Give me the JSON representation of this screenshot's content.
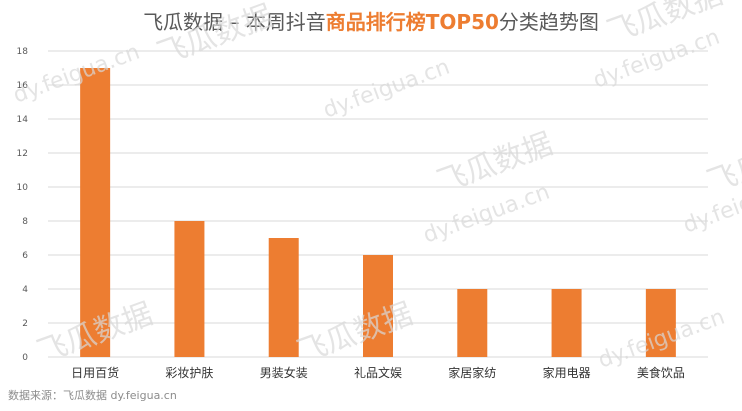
{
  "title": {
    "prefix": "飞瓜数据 – 本周抖音",
    "highlight": "商品排行榜TOP50",
    "suffix": "分类趋势图"
  },
  "source": "数据来源：飞瓜数据  dy.feigua.cn",
  "watermarks": [
    "飞瓜数据",
    "dy.feigua.cn"
  ],
  "colors": {
    "bar": "#ED7D31",
    "grid": "#d9d9d9",
    "axis_text": "#595959",
    "title_highlight": "#ED7D31"
  },
  "chart_data": {
    "type": "bar",
    "title": "飞瓜数据 – 本周抖音商品排行榜TOP50分类趋势图",
    "categories": [
      "日用百货",
      "彩妆护肤",
      "男装女装",
      "礼品文娱",
      "家居家纺",
      "家用电器",
      "美食饮品"
    ],
    "values": [
      17,
      8,
      7,
      6,
      4,
      4,
      4
    ],
    "yticks": [
      0,
      2,
      4,
      6,
      8,
      10,
      12,
      14,
      16,
      18
    ],
    "ylim": [
      0,
      18
    ],
    "grid": true,
    "legend": "none"
  }
}
